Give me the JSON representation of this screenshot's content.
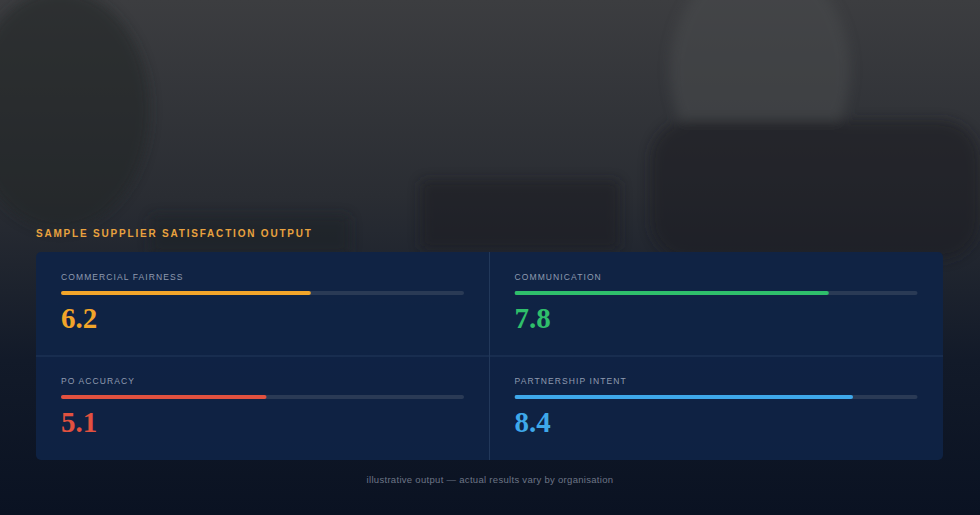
{
  "chart_data": {
    "type": "bar",
    "orientation": "horizontal",
    "title": "SAMPLE SUPPLIER SATISFACTION OUTPUT",
    "categories": [
      "COMMERCIAL FAIRNESS",
      "COMMUNICATION",
      "PO ACCURACY",
      "PARTNERSHIP INTENT"
    ],
    "values": [
      6.2,
      7.8,
      5.1,
      8.4
    ],
    "colors": [
      "#f2a52a",
      "#2fbf6b",
      "#e2513f",
      "#3ea8ea"
    ],
    "ylim": [
      0,
      10
    ],
    "tick_labels": false,
    "grid": false,
    "data_labels": true,
    "annotations": [
      "illustrative output — actual results vary by organisation"
    ]
  }
}
